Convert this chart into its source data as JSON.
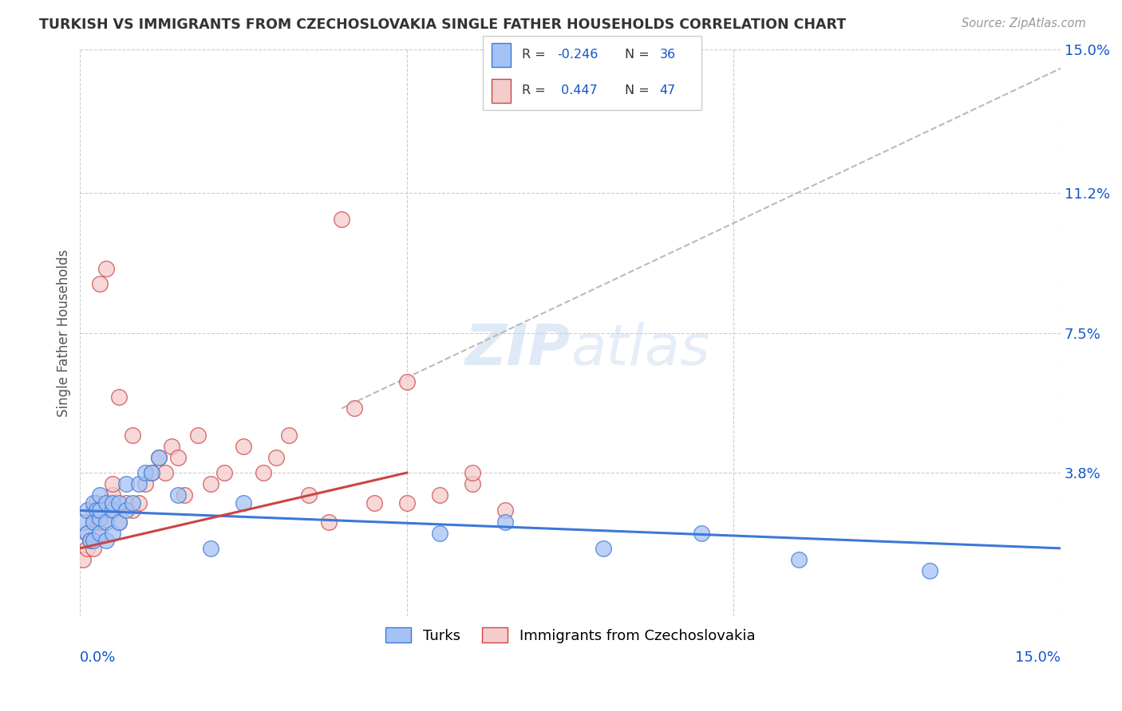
{
  "title": "TURKISH VS IMMIGRANTS FROM CZECHOSLOVAKIA SINGLE FATHER HOUSEHOLDS CORRELATION CHART",
  "source": "Source: ZipAtlas.com",
  "ylabel": "Single Father Households",
  "xmin": 0.0,
  "xmax": 0.15,
  "ymin": 0.0,
  "ymax": 0.15,
  "ytick_vals": [
    0.0,
    0.038,
    0.075,
    0.112,
    0.15
  ],
  "ytick_labels": [
    "",
    "3.8%",
    "7.5%",
    "11.2%",
    "15.0%"
  ],
  "color_blue": "#a4c2f4",
  "color_pink": "#f4cccc",
  "color_blue_edge": "#3c78d8",
  "color_pink_edge": "#cc4444",
  "color_blue_line": "#3c78d8",
  "color_pink_line": "#cc4444",
  "color_axis_label": "#4a86e8",
  "color_dark_blue": "#1155cc",
  "turks_x": [
    0.0005,
    0.001,
    0.001,
    0.0015,
    0.002,
    0.002,
    0.002,
    0.0025,
    0.003,
    0.003,
    0.003,
    0.003,
    0.004,
    0.004,
    0.004,
    0.005,
    0.005,
    0.005,
    0.006,
    0.006,
    0.007,
    0.007,
    0.008,
    0.009,
    0.01,
    0.011,
    0.012,
    0.015,
    0.02,
    0.025,
    0.055,
    0.065,
    0.08,
    0.095,
    0.11,
    0.13
  ],
  "turks_y": [
    0.025,
    0.022,
    0.028,
    0.02,
    0.025,
    0.03,
    0.02,
    0.028,
    0.022,
    0.026,
    0.028,
    0.032,
    0.02,
    0.025,
    0.03,
    0.022,
    0.028,
    0.03,
    0.025,
    0.03,
    0.028,
    0.035,
    0.03,
    0.035,
    0.038,
    0.038,
    0.042,
    0.032,
    0.018,
    0.03,
    0.022,
    0.025,
    0.018,
    0.022,
    0.015,
    0.012
  ],
  "czech_x": [
    0.0005,
    0.001,
    0.001,
    0.0015,
    0.002,
    0.002,
    0.002,
    0.0025,
    0.003,
    0.003,
    0.003,
    0.004,
    0.004,
    0.005,
    0.005,
    0.005,
    0.006,
    0.006,
    0.007,
    0.008,
    0.008,
    0.009,
    0.01,
    0.011,
    0.012,
    0.013,
    0.014,
    0.015,
    0.016,
    0.018,
    0.02,
    0.022,
    0.025,
    0.028,
    0.03,
    0.032,
    0.035,
    0.038,
    0.04,
    0.042,
    0.045,
    0.05,
    0.055,
    0.06,
    0.065,
    0.06,
    0.05
  ],
  "czech_y": [
    0.015,
    0.018,
    0.022,
    0.02,
    0.025,
    0.028,
    0.018,
    0.03,
    0.022,
    0.025,
    0.088,
    0.092,
    0.025,
    0.028,
    0.032,
    0.035,
    0.058,
    0.025,
    0.03,
    0.028,
    0.048,
    0.03,
    0.035,
    0.038,
    0.042,
    0.038,
    0.045,
    0.042,
    0.032,
    0.048,
    0.035,
    0.038,
    0.045,
    0.038,
    0.042,
    0.048,
    0.032,
    0.025,
    0.105,
    0.055,
    0.03,
    0.03,
    0.032,
    0.035,
    0.028,
    0.038,
    0.062
  ],
  "blue_line_x": [
    0.0,
    0.15
  ],
  "blue_line_y": [
    0.028,
    0.018
  ],
  "pink_line_x": [
    0.0,
    0.05
  ],
  "pink_line_y": [
    0.018,
    0.038
  ],
  "dash_line_x": [
    0.04,
    0.15
  ],
  "dash_line_y": [
    0.055,
    0.145
  ]
}
